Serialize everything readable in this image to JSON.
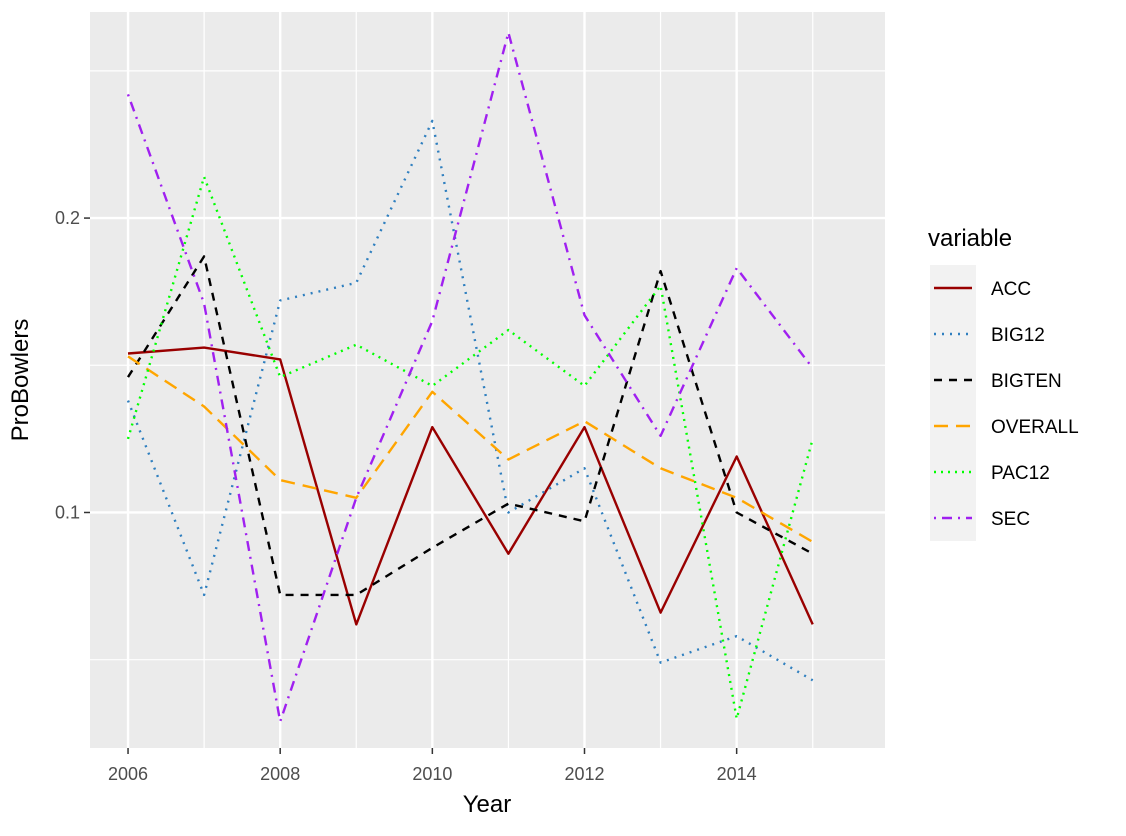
{
  "chart_data": {
    "type": "line",
    "xlabel": "Year",
    "ylabel": "ProBowlers",
    "x": [
      2006,
      2007,
      2008,
      2009,
      2010,
      2011,
      2012,
      2013,
      2014,
      2015
    ],
    "xlim": [
      2005.5,
      2015.95
    ],
    "ylim": [
      0.02,
      0.27
    ],
    "x_ticks": [
      2006,
      2008,
      2010,
      2012,
      2014
    ],
    "x_tick_labels": [
      "2006",
      "2008",
      "2010",
      "2012",
      "2014"
    ],
    "y_ticks": [
      0.1,
      0.2
    ],
    "y_tick_labels": [
      "0.1",
      "0.2"
    ],
    "grid": true,
    "legend_title": "variable",
    "legend_position": "right",
    "series": [
      {
        "name": "ACC",
        "color": "#990000",
        "linetype": "solid",
        "values": [
          0.154,
          0.156,
          0.152,
          0.062,
          0.129,
          0.086,
          0.129,
          0.066,
          0.119,
          0.062
        ]
      },
      {
        "name": "BIG12",
        "color": "#2f7fbf",
        "linetype": "dotted",
        "values": [
          0.138,
          0.072,
          0.172,
          0.178,
          0.233,
          0.1,
          0.115,
          0.049,
          0.058,
          0.043
        ]
      },
      {
        "name": "BIGTEN",
        "color": "#000000",
        "linetype": "dashed",
        "values": [
          0.146,
          0.187,
          0.072,
          0.072,
          0.088,
          0.103,
          0.097,
          0.182,
          0.1,
          0.086
        ]
      },
      {
        "name": "OVERALL",
        "color": "#ffa500",
        "linetype": "longdash",
        "values": [
          0.153,
          0.136,
          0.111,
          0.105,
          0.141,
          0.118,
          0.131,
          0.115,
          0.105,
          0.09
        ]
      },
      {
        "name": "PAC12",
        "color": "#00ff00",
        "linetype": "dotted-fine",
        "values": [
          0.125,
          0.214,
          0.146,
          0.157,
          0.143,
          0.162,
          0.143,
          0.177,
          0.03,
          0.125
        ]
      },
      {
        "name": "SEC",
        "color": "#a020f0",
        "linetype": "dotdash",
        "values": [
          0.242,
          0.171,
          0.029,
          0.105,
          0.165,
          0.263,
          0.167,
          0.126,
          0.183,
          0.149
        ]
      }
    ]
  }
}
